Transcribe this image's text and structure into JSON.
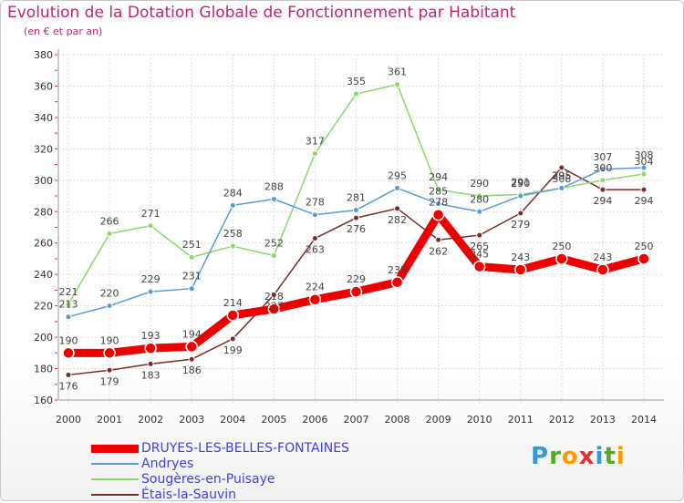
{
  "chart_data": {
    "type": "line",
    "title": "Evolution de la Dotation Globale de Fonctionnement par Habitant",
    "subtitle": "(en € et par an)",
    "xlabel": "",
    "ylabel": "",
    "ylim": [
      160,
      380
    ],
    "yticks": [
      160,
      180,
      200,
      220,
      240,
      260,
      280,
      300,
      320,
      340,
      360,
      380
    ],
    "categories": [
      "2000",
      "2001",
      "2002",
      "2003",
      "2004",
      "2005",
      "2006",
      "2007",
      "2008",
      "2009",
      "2010",
      "2011",
      "2012",
      "2013",
      "2014"
    ],
    "grid": true,
    "legend_position": "bottom-left",
    "series": [
      {
        "name": "DRUYES-LES-BELLES-FONTAINES",
        "color": "#ee0000",
        "values": [
          190,
          190,
          193,
          194,
          214,
          218,
          224,
          229,
          235,
          278,
          245,
          243,
          250,
          243,
          250
        ]
      },
      {
        "name": "Andryes",
        "color": "#5a9bd4",
        "values": [
          213,
          220,
          229,
          231,
          284,
          288,
          278,
          281,
          295,
          285,
          280,
          290,
          295,
          307,
          308
        ]
      },
      {
        "name": "Sougères-en-Puisaye",
        "color": "#88d966",
        "values": [
          221,
          266,
          271,
          251,
          258,
          252,
          317,
          355,
          361,
          294,
          290,
          291,
          295,
          300,
          304
        ]
      },
      {
        "name": "Étais-la-Sauvin",
        "color": "#7a2b2b",
        "values": [
          176,
          179,
          183,
          186,
          199,
          227,
          263,
          276,
          282,
          262,
          265,
          279,
          308,
          294,
          294
        ]
      }
    ]
  },
  "logo": {
    "p": "P",
    "r": "r",
    "o": "o",
    "x": "x",
    "i": "i",
    "t": "t",
    "i2": "i"
  }
}
